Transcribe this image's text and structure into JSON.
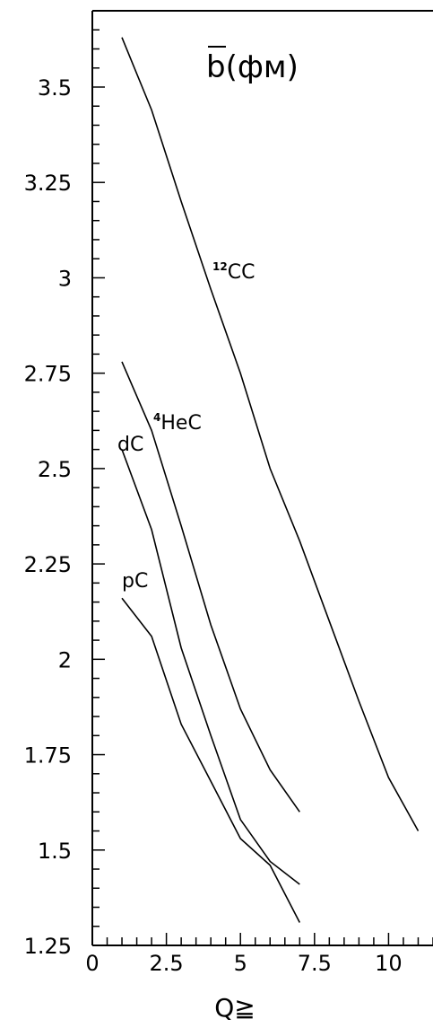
{
  "chart_data": {
    "type": "line",
    "title": "b(фм)",
    "xlabel": "Q≧",
    "ylabel": "",
    "xlim": [
      0,
      11.5
    ],
    "ylim": [
      1.25,
      3.7
    ],
    "x_ticks": [
      0,
      2.5,
      5,
      7.5,
      10
    ],
    "x_tick_labels": [
      "0",
      "2.5",
      "5",
      "7.5",
      "10"
    ],
    "y_ticks": [
      1.25,
      1.5,
      1.75,
      2,
      2.25,
      2.5,
      2.75,
      3,
      3.25,
      3.5
    ],
    "y_tick_labels": [
      "1.25",
      "1.5",
      "1.75",
      "2",
      "2.25",
      "2.5",
      "2.75",
      "3",
      "3.25",
      "3.5"
    ],
    "grid": false,
    "series": [
      {
        "name": "CC",
        "sup": "12",
        "x": [
          1,
          2,
          3,
          4,
          5,
          6,
          7,
          8,
          9,
          10,
          11
        ],
        "y": [
          3.63,
          3.44,
          3.2,
          2.97,
          2.75,
          2.5,
          2.31,
          2.1,
          1.89,
          1.69,
          1.55
        ]
      },
      {
        "name": "HeC",
        "sup": "4",
        "x": [
          1,
          2,
          3,
          4,
          5,
          6,
          7
        ],
        "y": [
          2.78,
          2.6,
          2.35,
          2.09,
          1.87,
          1.71,
          1.6
        ]
      },
      {
        "name": "dC",
        "sup": "",
        "x": [
          1,
          2,
          3,
          4,
          5,
          6,
          7
        ],
        "y": [
          2.55,
          2.34,
          2.03,
          1.8,
          1.58,
          1.47,
          1.41
        ]
      },
      {
        "name": "pC",
        "sup": "",
        "x": [
          1,
          2,
          3,
          4,
          5,
          6,
          7
        ],
        "y": [
          2.16,
          2.06,
          1.83,
          1.68,
          1.53,
          1.46,
          1.31
        ]
      }
    ]
  }
}
